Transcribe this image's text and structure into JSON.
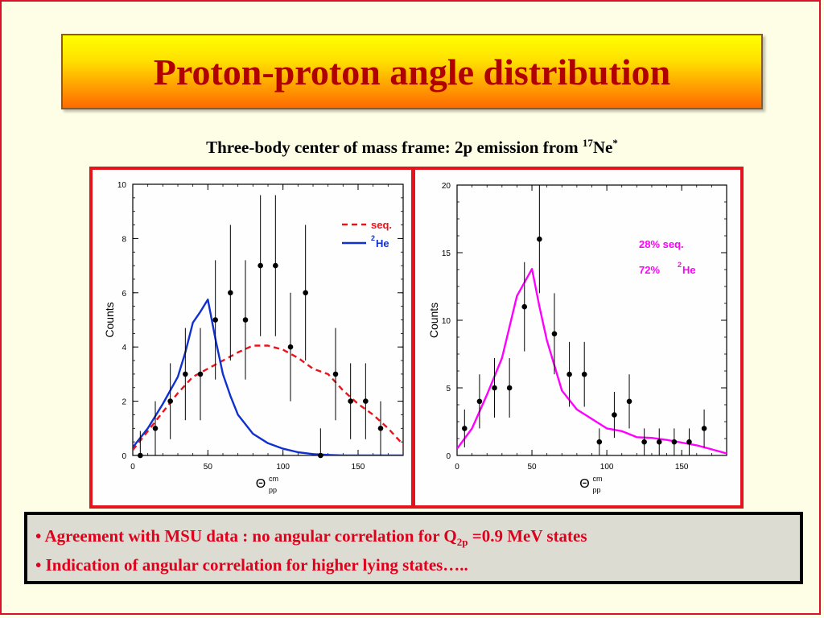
{
  "title": "Proton-proton angle distribution",
  "subtitle": {
    "text": "Three-body center of mass frame: 2p emission from ",
    "mass_number": "17",
    "element": "Ne",
    "superscript": "*"
  },
  "bullets": [
    {
      "prefix": "• Agreement with MSU data : no angular correlation for Q",
      "subscript": "2p",
      "suffix": " =0.9 MeV states"
    },
    {
      "prefix": "• Indication of angular correlation for higher lying states…..",
      "subscript": "",
      "suffix": ""
    }
  ],
  "colors": {
    "title_text": "#b00000",
    "bullet_text": "#e0001c",
    "panel_border": "#e3141c",
    "seq": "#e8141c",
    "he2": "#1030d0",
    "fit": "#ff00ff"
  },
  "chart_data": [
    {
      "type": "line",
      "ylabel": "Counts",
      "xlabel_symbol": "Θ",
      "xlabel_sup": "cm",
      "xlabel_sub": "pp",
      "xlim": [
        0,
        180
      ],
      "ylim": [
        0,
        10
      ],
      "xticks": [
        0,
        50,
        100,
        150
      ],
      "yticks": [
        0,
        2,
        4,
        6,
        8,
        10
      ],
      "legend": [
        {
          "label": "seq.",
          "style": "dashed",
          "color": "#e8141c"
        },
        {
          "label_sup": "2",
          "label": "He",
          "style": "solid",
          "color": "#1030d0"
        }
      ],
      "data_points": {
        "x": [
          5,
          15,
          25,
          35,
          45,
          55,
          65,
          75,
          85,
          95,
          105,
          115,
          125,
          135,
          145,
          155,
          165
        ],
        "y": [
          0,
          1,
          2,
          3,
          3,
          5,
          6,
          5,
          7,
          7,
          4,
          6,
          0,
          3,
          2,
          2,
          1
        ],
        "err": [
          0.9,
          1.0,
          1.4,
          1.7,
          1.7,
          2.2,
          2.5,
          2.2,
          2.6,
          2.6,
          2.0,
          2.5,
          1.0,
          1.7,
          1.4,
          1.4,
          1.0
        ]
      },
      "series": [
        {
          "name": "seq.",
          "style": "dashed",
          "color": "#e8141c",
          "x": [
            0,
            10,
            20,
            30,
            40,
            50,
            60,
            70,
            80,
            90,
            100,
            110,
            120,
            130,
            140,
            150,
            160,
            170,
            180
          ],
          "y": [
            0.2,
            0.9,
            1.6,
            2.3,
            2.9,
            3.2,
            3.5,
            3.8,
            4.05,
            4.05,
            3.9,
            3.6,
            3.2,
            3.0,
            2.4,
            1.9,
            1.5,
            1.0,
            0.4
          ]
        },
        {
          "name": "2He",
          "style": "solid",
          "color": "#1030d0",
          "x": [
            0,
            10,
            20,
            30,
            35,
            40,
            45,
            50,
            55,
            60,
            65,
            70,
            80,
            90,
            100,
            110,
            120,
            130,
            140,
            150,
            160,
            170,
            180
          ],
          "y": [
            0.3,
            1.0,
            1.9,
            2.9,
            3.8,
            4.9,
            5.3,
            5.75,
            4.3,
            3.0,
            2.2,
            1.5,
            0.8,
            0.45,
            0.25,
            0.12,
            0.05,
            0.02,
            0,
            0,
            0,
            0,
            0
          ]
        }
      ]
    },
    {
      "type": "line",
      "ylabel": "Counts",
      "xlabel_symbol": "Θ",
      "xlabel_sup": "cm",
      "xlabel_sub": "pp",
      "xlim": [
        0,
        180
      ],
      "ylim": [
        0,
        20
      ],
      "xticks": [
        0,
        50,
        100,
        150
      ],
      "yticks": [
        0,
        5,
        10,
        15,
        20
      ],
      "annotations": [
        {
          "pre": "",
          "sup": "",
          "text": "28%  seq."
        },
        {
          "pre": "72%  ",
          "sup": "2",
          "text": "He"
        }
      ],
      "data_points": {
        "x": [
          5,
          15,
          25,
          35,
          45,
          55,
          65,
          75,
          85,
          95,
          105,
          115,
          125,
          135,
          145,
          155,
          165
        ],
        "y": [
          2,
          4,
          5,
          5,
          11,
          16,
          9,
          6,
          6,
          1,
          3,
          4,
          1,
          1,
          1,
          1,
          2
        ],
        "err": [
          1.4,
          2.0,
          2.2,
          2.2,
          3.3,
          4.0,
          3.0,
          2.4,
          2.4,
          1.0,
          1.7,
          2.0,
          1.0,
          1.0,
          1.0,
          1.0,
          1.4
        ]
      },
      "series": [
        {
          "name": "28% seq. + 72% 2He",
          "style": "solid",
          "color": "#ff00ff",
          "x": [
            0,
            10,
            20,
            30,
            40,
            50,
            55,
            60,
            70,
            80,
            90,
            100,
            110,
            120,
            130,
            140,
            150,
            160,
            170,
            180
          ],
          "y": [
            0.5,
            2.0,
            4.5,
            7.2,
            11.8,
            13.8,
            11.0,
            8.5,
            4.8,
            3.4,
            2.7,
            2.0,
            1.8,
            1.35,
            1.3,
            1.15,
            0.95,
            0.75,
            0.45,
            0.15
          ]
        }
      ]
    }
  ]
}
